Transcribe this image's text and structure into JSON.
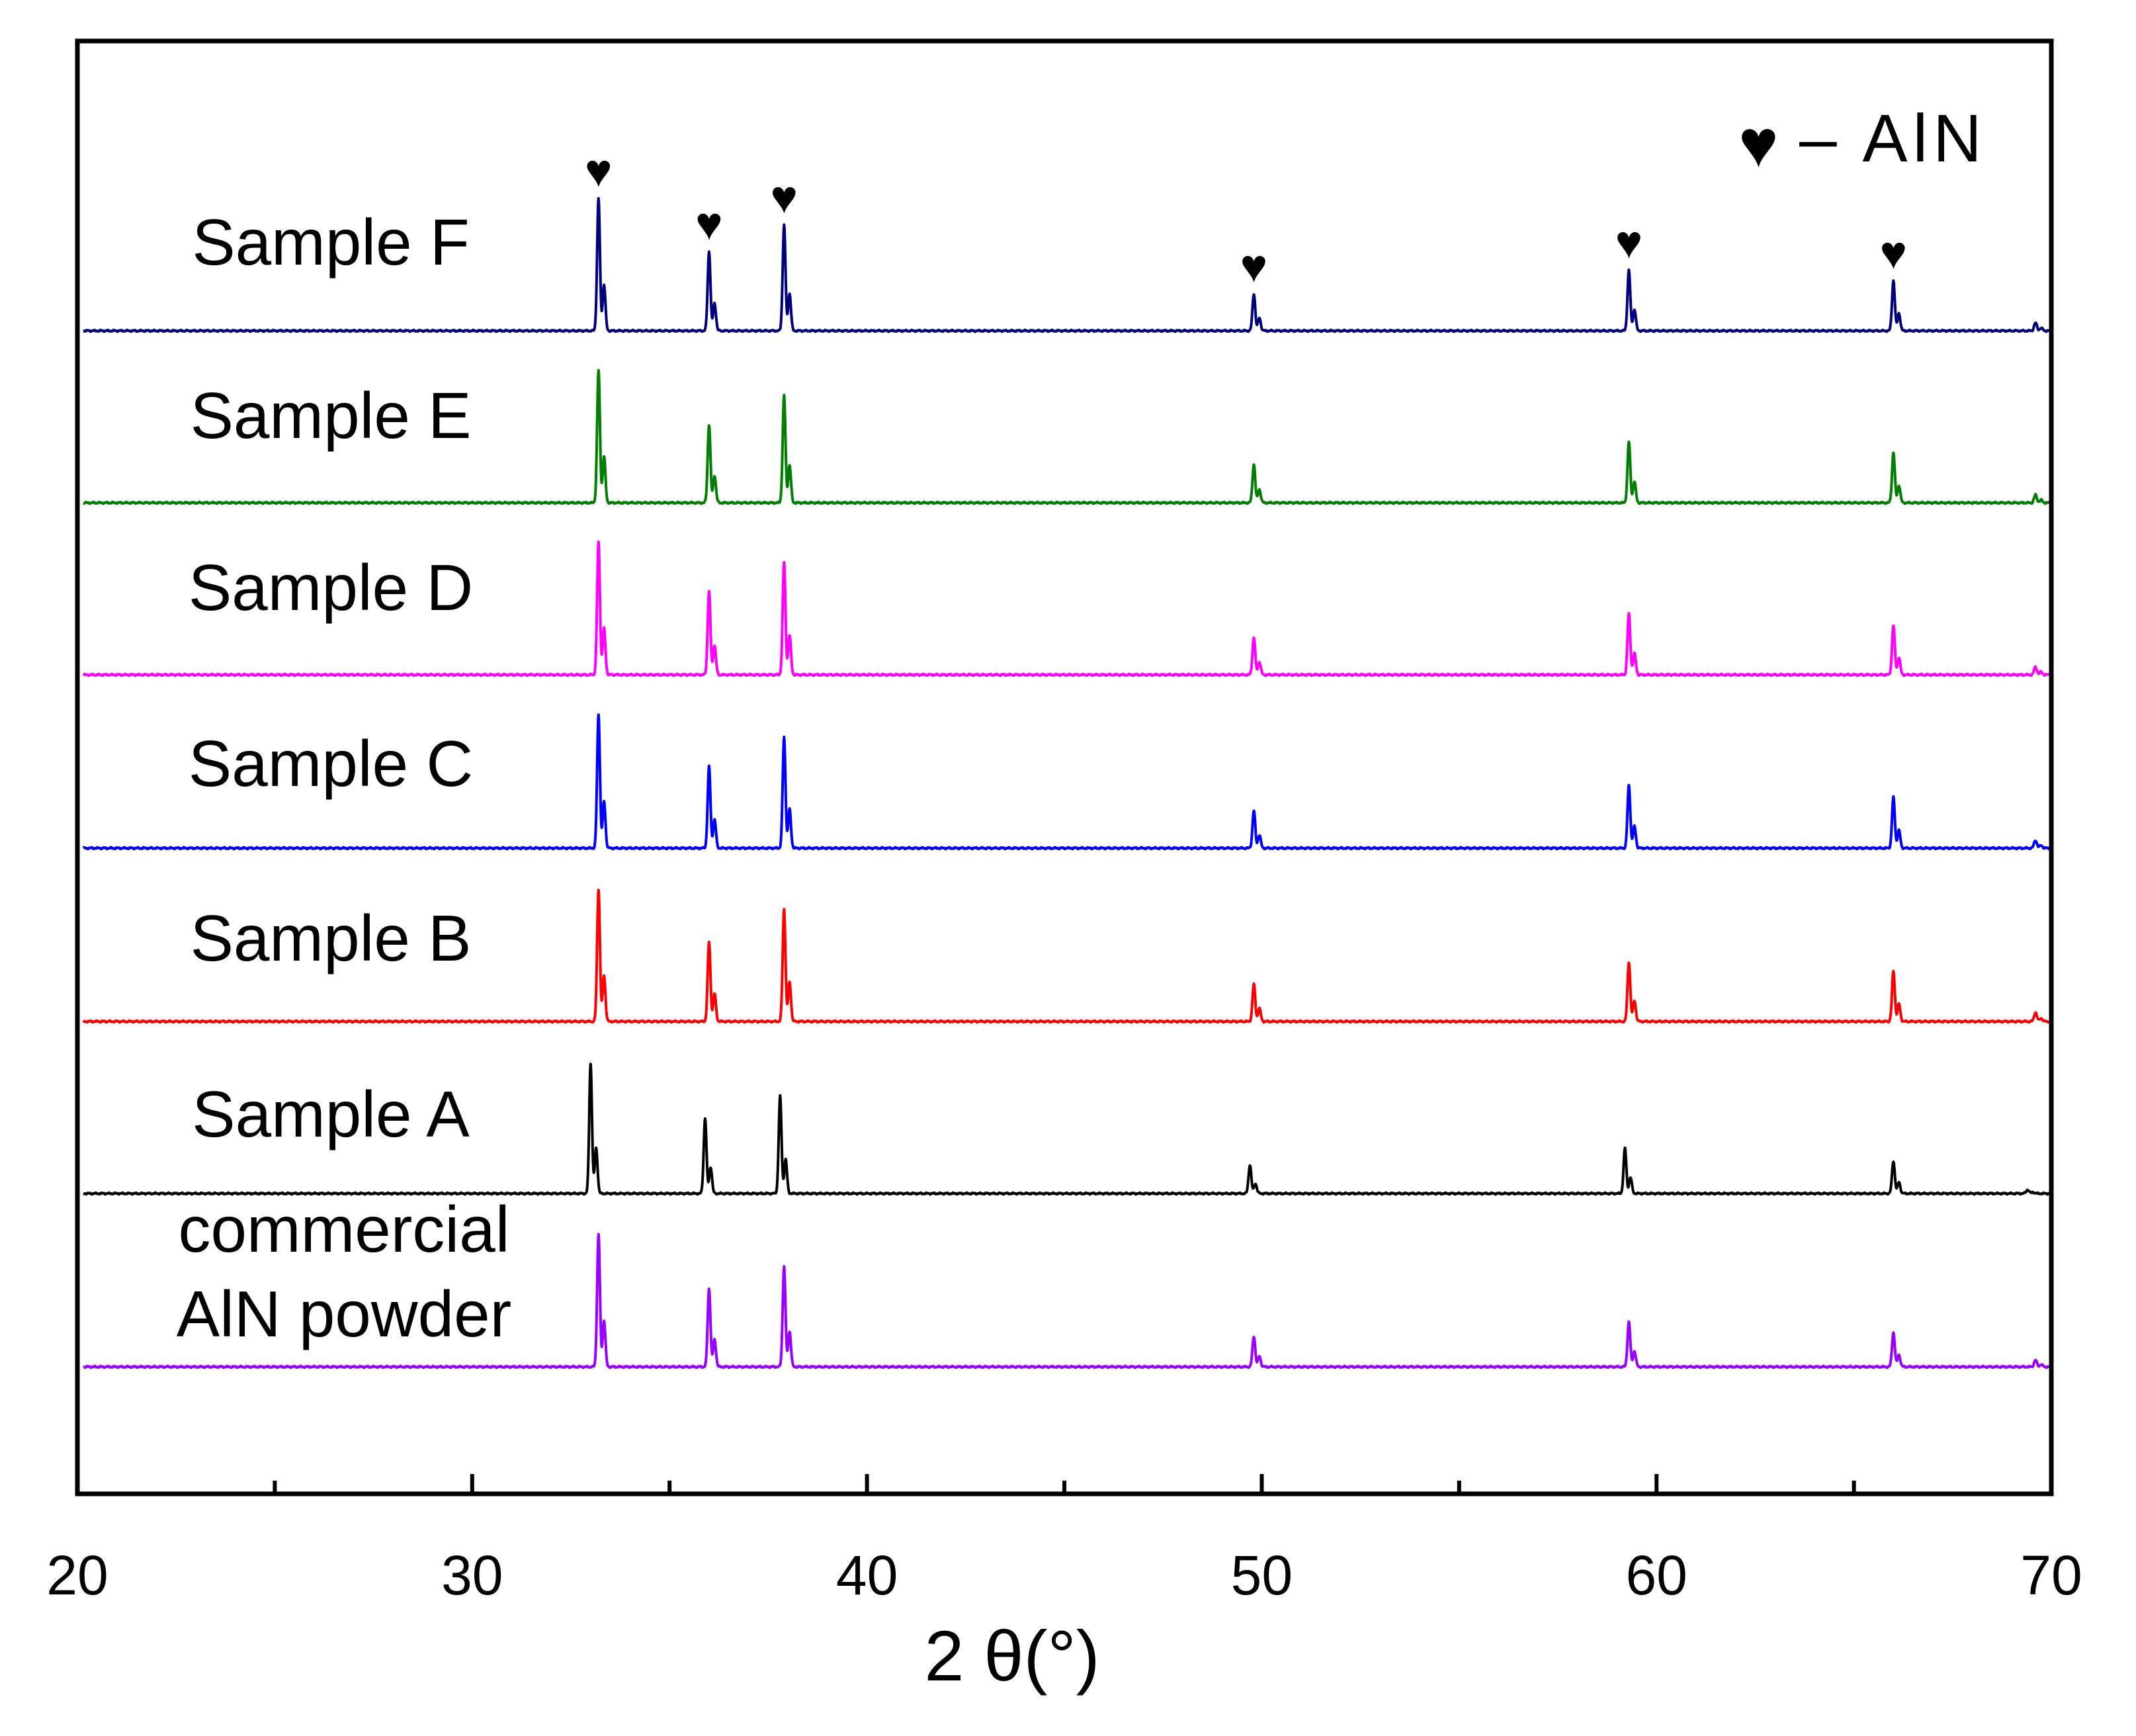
{
  "chart_data": {
    "type": "line",
    "title": "",
    "xlabel": "2 θ(°)",
    "ylabel": "",
    "xlim": [
      20,
      70
    ],
    "xticks": [
      "20",
      "30",
      "40",
      "50",
      "60",
      "70"
    ],
    "grid": false,
    "legend": {
      "symbol": "♥",
      "text": "– AlN",
      "position": "top-right"
    },
    "peak_marker_symbol": "♥",
    "marked_peaks": [
      33.2,
      36.0,
      37.9,
      49.8,
      59.3,
      66.0
    ],
    "series": [
      {
        "name": "Sample F",
        "color": "#00007f",
        "peaks": [
          [
            33.2,
            1.0
          ],
          [
            36.0,
            0.6
          ],
          [
            37.9,
            0.8
          ],
          [
            49.8,
            0.28
          ],
          [
            59.3,
            0.46
          ],
          [
            66.0,
            0.38
          ],
          [
            69.6,
            0.06
          ]
        ]
      },
      {
        "name": "Sample E",
        "color": "#007f00",
        "peaks": [
          [
            33.2,
            1.0
          ],
          [
            36.0,
            0.59
          ],
          [
            37.9,
            0.81
          ],
          [
            49.8,
            0.29
          ],
          [
            59.3,
            0.46
          ],
          [
            66.0,
            0.38
          ],
          [
            69.6,
            0.06
          ]
        ]
      },
      {
        "name": "Sample D",
        "color": "#ff00ff",
        "peaks": [
          [
            33.2,
            1.0
          ],
          [
            36.0,
            0.63
          ],
          [
            37.9,
            0.85
          ],
          [
            49.8,
            0.28
          ],
          [
            59.3,
            0.46
          ],
          [
            66.0,
            0.37
          ],
          [
            69.6,
            0.06
          ]
        ]
      },
      {
        "name": "Sample C",
        "color": "#0000ff",
        "peaks": [
          [
            33.2,
            1.0
          ],
          [
            36.0,
            0.61
          ],
          [
            37.9,
            0.83
          ],
          [
            49.8,
            0.28
          ],
          [
            59.3,
            0.47
          ],
          [
            66.0,
            0.38
          ],
          [
            69.6,
            0.06
          ]
        ]
      },
      {
        "name": "Sample B",
        "color": "#ff0000",
        "peaks": [
          [
            33.2,
            1.0
          ],
          [
            36.0,
            0.6
          ],
          [
            37.9,
            0.85
          ],
          [
            49.8,
            0.28
          ],
          [
            59.3,
            0.45
          ],
          [
            66.0,
            0.38
          ],
          [
            69.6,
            0.07
          ]
        ]
      },
      {
        "name": "Sample A",
        "color": "#000000",
        "peaks": [
          [
            33.0,
            1.0
          ],
          [
            35.9,
            0.58
          ],
          [
            37.8,
            0.75
          ],
          [
            49.7,
            0.22
          ],
          [
            59.2,
            0.35
          ],
          [
            66.0,
            0.25
          ],
          [
            69.4,
            0.03
          ]
        ]
      },
      {
        "name": "commercial\nAlN powder",
        "color": "#9900ff",
        "peaks": [
          [
            33.2,
            1.0
          ],
          [
            36.0,
            0.59
          ],
          [
            37.9,
            0.76
          ],
          [
            49.8,
            0.23
          ],
          [
            59.3,
            0.34
          ],
          [
            66.0,
            0.26
          ],
          [
            69.6,
            0.05
          ]
        ]
      }
    ]
  }
}
